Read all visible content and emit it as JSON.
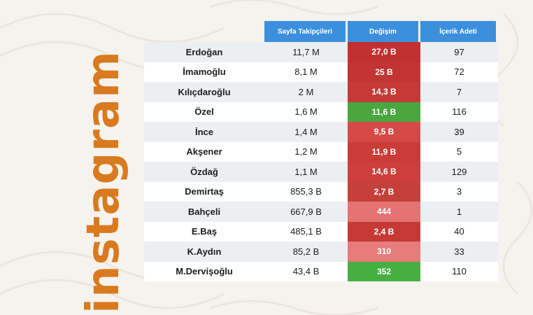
{
  "side_title": "instagram",
  "headers": [
    "Sayfa Takipçileri",
    "Değişim",
    "İçerik Adeti"
  ],
  "rows": [
    {
      "name": "Erdoğan",
      "followers": "11,7 M",
      "change": "27,0 B",
      "count": "97",
      "color": "#c0312f"
    },
    {
      "name": "İmamoğlu",
      "followers": "8,1 M",
      "change": "25 B",
      "count": "72",
      "color": "#c23532"
    },
    {
      "name": "Kılıçdaroğlu",
      "followers": "2 M",
      "change": "14,3 B",
      "count": "7",
      "color": "#c63a36"
    },
    {
      "name": "Özel",
      "followers": "1,6 M",
      "change": "11,6 B",
      "count": "116",
      "color": "#4aa63f"
    },
    {
      "name": "İnce",
      "followers": "1,4 M",
      "change": "9,5 B",
      "count": "39",
      "color": "#d64a45"
    },
    {
      "name": "Akşener",
      "followers": "1,2 M",
      "change": "11,9 B",
      "count": "5",
      "color": "#c93c38"
    },
    {
      "name": "Özdağ",
      "followers": "1,1 M",
      "change": "14,6 B",
      "count": "129",
      "color": "#cc3f3a"
    },
    {
      "name": "Demirtaş",
      "followers": "855,3 B",
      "change": "2,7 B",
      "count": "3",
      "color": "#c4413b"
    },
    {
      "name": "Bahçeli",
      "followers": "667,9 B",
      "change": "444",
      "count": "1",
      "color": "#e57373"
    },
    {
      "name": "E.Baş",
      "followers": "485,1 B",
      "change": "2,4 B",
      "count": "40",
      "color": "#c53a35"
    },
    {
      "name": "K.Aydın",
      "followers": "85,2 B",
      "change": "310",
      "count": "33",
      "color": "#e87b7b"
    },
    {
      "name": "M.Dervişoğlu",
      "followers": "43,4 B",
      "change": "352",
      "count": "110",
      "color": "#45b040"
    }
  ]
}
